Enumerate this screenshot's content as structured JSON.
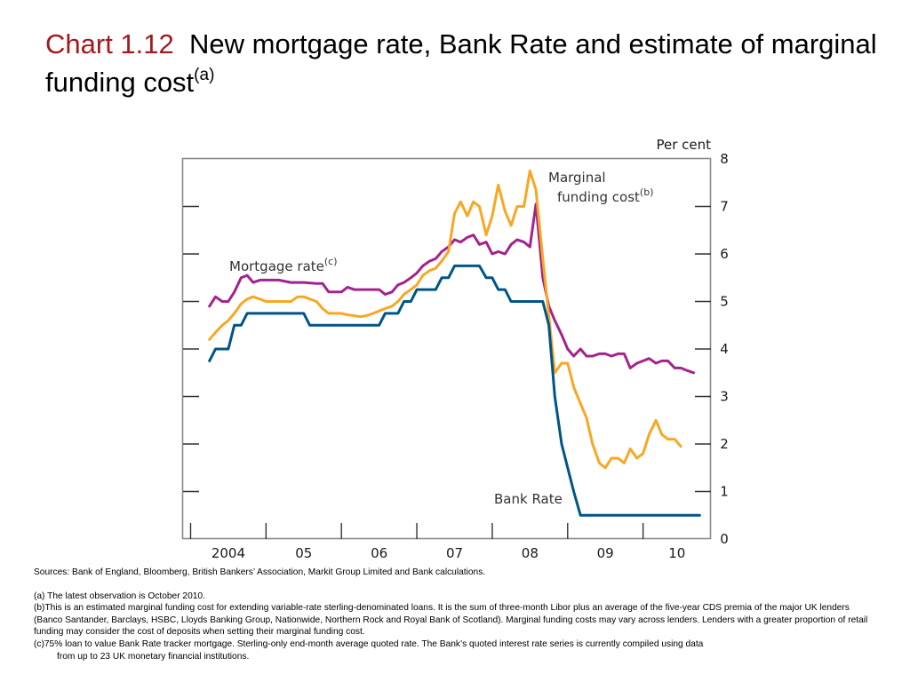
{
  "title": {
    "number": "Chart 1.12",
    "text": "New mortgage rate, Bank Rate and estimate of marginal funding cost",
    "superscript": "(a)"
  },
  "notes": {
    "sources": "Sources:  Bank of England, Bloomberg, British Bankers’ Association, Markit Group Limited and Bank calculations.",
    "a": "(a)    The latest observation is October 2010.",
    "b": "(b)This is an estimated marginal funding cost for extending variable-rate sterling-denominated loans.  It is the sum of three-month Libor plus an average of the five-year CDS premia of the major UK lenders (Banco Santander, Barclays, HSBC, Lloyds Banking Group, Nationwide, Northern Rock and Royal Bank of Scotland).  Marginal funding costs may vary across lenders.  Lenders with a greater proportion of retail funding may consider the cost of deposits when setting their marginal funding cost.",
    "c1": "(c)75% loan to value Bank Rate tracker mortgage.  Sterling-only end-month average quoted rate.  The Bank’s quoted interest rate series is currently compiled using data",
    "c2": "from up to 23 UK monetary financial institutions."
  },
  "chart_data": {
    "type": "line",
    "title": "New mortgage rate, Bank Rate and estimate of marginal funding cost",
    "ylabel": "Per cent",
    "ylim": [
      0,
      8
    ],
    "yticks": [
      0,
      1,
      2,
      3,
      4,
      5,
      6,
      7,
      8
    ],
    "xlim": [
      2003.9,
      2010.9
    ],
    "xtick_labels": [
      "2004",
      "05",
      "06",
      "07",
      "08",
      "09",
      "10"
    ],
    "grid": false,
    "series": [
      {
        "name": "Mortgage rate",
        "label_superscript": "(c)",
        "color": "#a3238e",
        "values": [
          [
            2004.25,
            4.9
          ],
          [
            2004.33,
            5.1
          ],
          [
            2004.42,
            5.0
          ],
          [
            2004.5,
            5.0
          ],
          [
            2004.58,
            5.2
          ],
          [
            2004.67,
            5.5
          ],
          [
            2004.75,
            5.55
          ],
          [
            2004.83,
            5.4
          ],
          [
            2004.92,
            5.45
          ],
          [
            2005.0,
            5.45
          ],
          [
            2005.17,
            5.45
          ],
          [
            2005.33,
            5.4
          ],
          [
            2005.5,
            5.4
          ],
          [
            2005.67,
            5.38
          ],
          [
            2005.75,
            5.38
          ],
          [
            2005.83,
            5.2
          ],
          [
            2005.92,
            5.2
          ],
          [
            2006.0,
            5.2
          ],
          [
            2006.08,
            5.3
          ],
          [
            2006.17,
            5.25
          ],
          [
            2006.33,
            5.25
          ],
          [
            2006.5,
            5.25
          ],
          [
            2006.58,
            5.15
          ],
          [
            2006.67,
            5.2
          ],
          [
            2006.75,
            5.35
          ],
          [
            2006.83,
            5.4
          ],
          [
            2006.92,
            5.5
          ],
          [
            2007.0,
            5.6
          ],
          [
            2007.08,
            5.75
          ],
          [
            2007.17,
            5.85
          ],
          [
            2007.25,
            5.9
          ],
          [
            2007.33,
            6.05
          ],
          [
            2007.42,
            6.15
          ],
          [
            2007.5,
            6.3
          ],
          [
            2007.58,
            6.25
          ],
          [
            2007.67,
            6.35
          ],
          [
            2007.75,
            6.4
          ],
          [
            2007.83,
            6.2
          ],
          [
            2007.92,
            6.25
          ],
          [
            2008.0,
            6.0
          ],
          [
            2008.08,
            6.05
          ],
          [
            2008.17,
            6.0
          ],
          [
            2008.25,
            6.2
          ],
          [
            2008.33,
            6.3
          ],
          [
            2008.42,
            6.25
          ],
          [
            2008.5,
            6.15
          ],
          [
            2008.58,
            7.05
          ],
          [
            2008.67,
            5.5
          ],
          [
            2008.75,
            4.9
          ],
          [
            2008.83,
            4.6
          ],
          [
            2008.92,
            4.3
          ],
          [
            2009.0,
            4.0
          ],
          [
            2009.08,
            3.85
          ],
          [
            2009.17,
            4.0
          ],
          [
            2009.25,
            3.85
          ],
          [
            2009.33,
            3.85
          ],
          [
            2009.42,
            3.9
          ],
          [
            2009.5,
            3.9
          ],
          [
            2009.58,
            3.85
          ],
          [
            2009.67,
            3.9
          ],
          [
            2009.75,
            3.9
          ],
          [
            2009.83,
            3.6
          ],
          [
            2009.92,
            3.7
          ],
          [
            2010.0,
            3.75
          ],
          [
            2010.08,
            3.8
          ],
          [
            2010.17,
            3.7
          ],
          [
            2010.25,
            3.75
          ],
          [
            2010.33,
            3.75
          ],
          [
            2010.42,
            3.6
          ],
          [
            2010.5,
            3.6
          ],
          [
            2010.58,
            3.55
          ],
          [
            2010.67,
            3.5
          ]
        ]
      },
      {
        "name": "Marginal funding cost",
        "label_superscript": "(b)",
        "color": "#f7a823",
        "values": [
          [
            2004.25,
            4.2
          ],
          [
            2004.33,
            4.35
          ],
          [
            2004.42,
            4.5
          ],
          [
            2004.5,
            4.6
          ],
          [
            2004.58,
            4.75
          ],
          [
            2004.67,
            4.95
          ],
          [
            2004.75,
            5.05
          ],
          [
            2004.83,
            5.1
          ],
          [
            2004.92,
            5.05
          ],
          [
            2005.0,
            5.0
          ],
          [
            2005.17,
            5.0
          ],
          [
            2005.33,
            5.0
          ],
          [
            2005.42,
            5.1
          ],
          [
            2005.5,
            5.1
          ],
          [
            2005.67,
            5.0
          ],
          [
            2005.75,
            4.85
          ],
          [
            2005.83,
            4.75
          ],
          [
            2005.92,
            4.75
          ],
          [
            2006.0,
            4.75
          ],
          [
            2006.08,
            4.72
          ],
          [
            2006.17,
            4.7
          ],
          [
            2006.25,
            4.68
          ],
          [
            2006.33,
            4.7
          ],
          [
            2006.42,
            4.75
          ],
          [
            2006.5,
            4.8
          ],
          [
            2006.58,
            4.85
          ],
          [
            2006.67,
            4.9
          ],
          [
            2006.75,
            5.0
          ],
          [
            2006.83,
            5.15
          ],
          [
            2006.92,
            5.25
          ],
          [
            2007.0,
            5.35
          ],
          [
            2007.08,
            5.55
          ],
          [
            2007.17,
            5.65
          ],
          [
            2007.25,
            5.7
          ],
          [
            2007.33,
            5.85
          ],
          [
            2007.42,
            6.05
          ],
          [
            2007.5,
            6.85
          ],
          [
            2007.58,
            7.1
          ],
          [
            2007.67,
            6.8
          ],
          [
            2007.75,
            7.1
          ],
          [
            2007.83,
            7.0
          ],
          [
            2007.92,
            6.4
          ],
          [
            2008.0,
            6.8
          ],
          [
            2008.08,
            7.45
          ],
          [
            2008.17,
            6.9
          ],
          [
            2008.25,
            6.6
          ],
          [
            2008.33,
            7.0
          ],
          [
            2008.42,
            7.0
          ],
          [
            2008.5,
            7.75
          ],
          [
            2008.58,
            7.35
          ],
          [
            2008.67,
            5.9
          ],
          [
            2008.75,
            4.7
          ],
          [
            2008.83,
            3.5
          ],
          [
            2008.92,
            3.7
          ],
          [
            2009.0,
            3.7
          ],
          [
            2009.08,
            3.2
          ],
          [
            2009.17,
            2.85
          ],
          [
            2009.25,
            2.55
          ],
          [
            2009.33,
            2.0
          ],
          [
            2009.42,
            1.6
          ],
          [
            2009.5,
            1.5
          ],
          [
            2009.58,
            1.7
          ],
          [
            2009.67,
            1.7
          ],
          [
            2009.75,
            1.6
          ],
          [
            2009.83,
            1.9
          ],
          [
            2009.92,
            1.7
          ],
          [
            2010.0,
            1.8
          ],
          [
            2010.08,
            2.2
          ],
          [
            2010.17,
            2.5
          ],
          [
            2010.25,
            2.2
          ],
          [
            2010.33,
            2.1
          ],
          [
            2010.42,
            2.1
          ],
          [
            2010.5,
            1.95
          ]
        ]
      },
      {
        "name": "Bank Rate",
        "color": "#005587",
        "values": [
          [
            2004.25,
            3.75
          ],
          [
            2004.33,
            4.0
          ],
          [
            2004.5,
            4.0
          ],
          [
            2004.58,
            4.5
          ],
          [
            2004.67,
            4.5
          ],
          [
            2004.75,
            4.75
          ],
          [
            2005.5,
            4.75
          ],
          [
            2005.58,
            4.5
          ],
          [
            2006.5,
            4.5
          ],
          [
            2006.58,
            4.75
          ],
          [
            2006.75,
            4.75
          ],
          [
            2006.83,
            5.0
          ],
          [
            2006.92,
            5.0
          ],
          [
            2007.0,
            5.25
          ],
          [
            2007.25,
            5.25
          ],
          [
            2007.33,
            5.5
          ],
          [
            2007.42,
            5.5
          ],
          [
            2007.5,
            5.75
          ],
          [
            2007.83,
            5.75
          ],
          [
            2007.92,
            5.5
          ],
          [
            2008.0,
            5.5
          ],
          [
            2008.08,
            5.25
          ],
          [
            2008.17,
            5.25
          ],
          [
            2008.25,
            5.0
          ],
          [
            2008.67,
            5.0
          ],
          [
            2008.75,
            4.5
          ],
          [
            2008.83,
            3.0
          ],
          [
            2008.92,
            2.0
          ],
          [
            2009.0,
            1.5
          ],
          [
            2009.08,
            1.0
          ],
          [
            2009.17,
            0.5
          ],
          [
            2010.75,
            0.5
          ]
        ]
      }
    ]
  }
}
